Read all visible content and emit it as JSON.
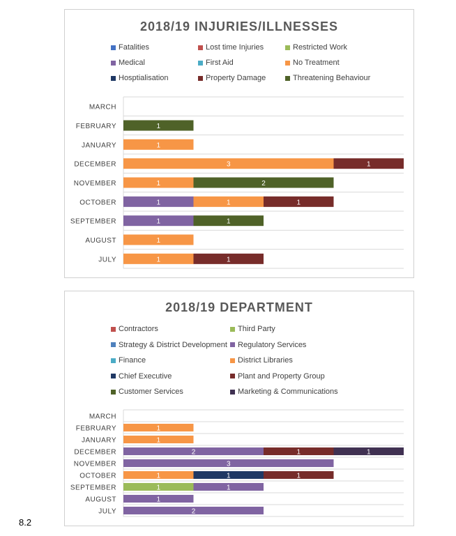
{
  "page": {
    "footer_label": "8.2"
  },
  "chart_data": [
    {
      "type": "bar",
      "orientation": "horizontal",
      "stacked": true,
      "title": "2018/19 INJURIES/ILLNESSES",
      "categories": [
        "JULY",
        "AUGUST",
        "SEPTEMBER",
        "OCTOBER",
        "NOVEMBER",
        "DECEMBER",
        "JANUARY",
        "FEBRUARY",
        "MARCH"
      ],
      "legend_placement": "top",
      "grid": true,
      "xlim": [
        0,
        4
      ],
      "series": [
        {
          "name": "Fatalities",
          "color": "#4472c4",
          "values": [
            0,
            0,
            0,
            0,
            0,
            0,
            0,
            0,
            0
          ]
        },
        {
          "name": "Lost time Injuries",
          "color": "#c0504d",
          "values": [
            0,
            0,
            0,
            0,
            0,
            0,
            0,
            0,
            0
          ]
        },
        {
          "name": "Restricted Work",
          "color": "#9bbb59",
          "values": [
            0,
            0,
            0,
            0,
            0,
            0,
            0,
            0,
            0
          ]
        },
        {
          "name": "Medical",
          "color": "#8064a2",
          "values": [
            0,
            0,
            1,
            1,
            0,
            0,
            0,
            0,
            0
          ]
        },
        {
          "name": "First Aid",
          "color": "#4bacc6",
          "values": [
            0,
            0,
            0,
            0,
            0,
            0,
            0,
            0,
            0
          ]
        },
        {
          "name": "No Treatment",
          "color": "#f79646",
          "values": [
            1,
            1,
            0,
            1,
            1,
            3,
            1,
            0,
            0
          ]
        },
        {
          "name": "Hosptialisation",
          "color": "#1f3864",
          "values": [
            0,
            0,
            0,
            0,
            0,
            0,
            0,
            0,
            0
          ]
        },
        {
          "name": "Property Damage",
          "color": "#772c2a",
          "values": [
            1,
            0,
            0,
            1,
            0,
            1,
            0,
            0,
            0
          ]
        },
        {
          "name": "Threatening Behaviour",
          "color": "#4f6228",
          "values": [
            0,
            0,
            1,
            0,
            2,
            0,
            0,
            1,
            0
          ]
        }
      ]
    },
    {
      "type": "bar",
      "orientation": "horizontal",
      "stacked": true,
      "title": "2018/19 DEPARTMENT",
      "categories": [
        "JULY",
        "AUGUST",
        "SEPTEMBER",
        "OCTOBER",
        "NOVEMBER",
        "DECEMBER",
        "JANUARY",
        "FEBRUARY",
        "MARCH"
      ],
      "legend_placement": "top",
      "grid": true,
      "xlim": [
        0,
        4
      ],
      "series": [
        {
          "name": "Contractors",
          "color": "#c0504d",
          "values": [
            0,
            0,
            0,
            0,
            0,
            0,
            0,
            0,
            0
          ]
        },
        {
          "name": "Third Party",
          "color": "#9bbb59",
          "values": [
            0,
            0,
            1,
            0,
            0,
            0,
            0,
            0,
            0
          ]
        },
        {
          "name": "Strategy & District Development",
          "color": "#4f81bd",
          "values": [
            0,
            0,
            0,
            0,
            0,
            0,
            0,
            0,
            0
          ]
        },
        {
          "name": "Regulatory Services",
          "color": "#8064a2",
          "values": [
            2,
            1,
            1,
            0,
            3,
            2,
            0,
            0,
            0
          ]
        },
        {
          "name": "Finance",
          "color": "#4bacc6",
          "values": [
            0,
            0,
            0,
            0,
            0,
            0,
            0,
            0,
            0
          ]
        },
        {
          "name": "District Libraries",
          "color": "#f79646",
          "values": [
            0,
            0,
            0,
            1,
            0,
            0,
            1,
            1,
            0
          ]
        },
        {
          "name": "Chief Executive",
          "color": "#1f3864",
          "values": [
            0,
            0,
            0,
            1,
            0,
            0,
            0,
            0,
            0
          ]
        },
        {
          "name": "Plant and Property Group",
          "color": "#772c2a",
          "values": [
            0,
            0,
            0,
            1,
            0,
            1,
            0,
            0,
            0
          ]
        },
        {
          "name": "Customer Services",
          "color": "#4f6228",
          "values": [
            0,
            0,
            0,
            0,
            0,
            0,
            0,
            0,
            0
          ]
        },
        {
          "name": "Marketing & Communications",
          "color": "#403152",
          "values": [
            0,
            0,
            0,
            0,
            0,
            1,
            0,
            0,
            0
          ]
        }
      ]
    }
  ]
}
